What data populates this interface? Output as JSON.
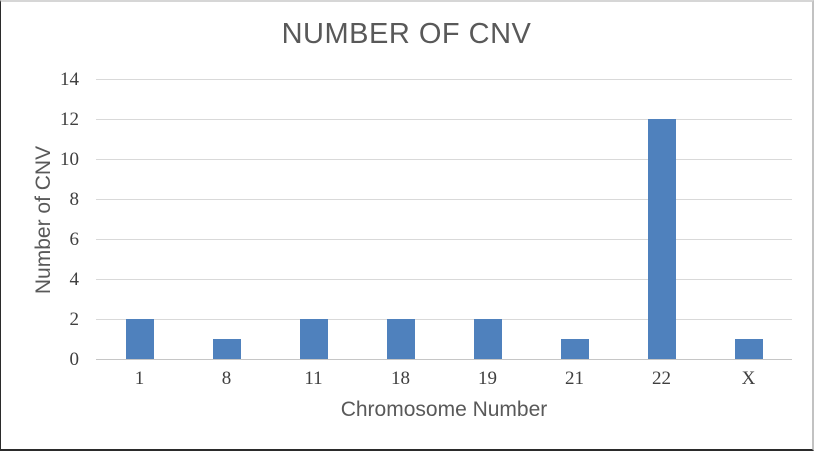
{
  "chart_data": {
    "type": "bar",
    "title": "NUMBER OF CNV",
    "xlabel": "Chromosome Number",
    "ylabel": "Number of CNV",
    "categories": [
      "1",
      "8",
      "11",
      "18",
      "19",
      "21",
      "22",
      "X"
    ],
    "values": [
      2,
      1,
      2,
      2,
      2,
      1,
      12,
      1
    ],
    "series": [
      {
        "name": "Number of CNV",
        "values": [
          2,
          1,
          2,
          2,
          2,
          1,
          12,
          1
        ]
      }
    ],
    "y_ticks": [
      0,
      2,
      4,
      6,
      8,
      10,
      12,
      14
    ],
    "ylim": [
      0,
      14
    ],
    "grid": true,
    "legend_position": "none",
    "colors": {
      "bar": "#4F81BD",
      "gridline": "#D9D9D9",
      "axis_line": "#C6C6C6",
      "title_text": "#595959",
      "axis_title_text": "#595959",
      "tick_text": "#3F3F3F",
      "background": "#FFFFFF"
    }
  }
}
